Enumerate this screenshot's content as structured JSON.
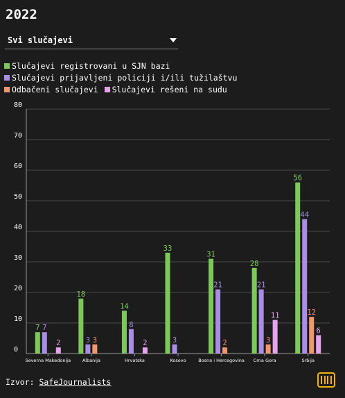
{
  "title": "2022",
  "filter": {
    "selected": "Svi slučajevi"
  },
  "legend": [
    {
      "label": "Slučajevi registrovani u SJN bazi",
      "color": "#7cc95a"
    },
    {
      "label": "Slučajevi prijavljeni policiji i/ili tužilaštvu",
      "color": "#a98de6"
    },
    {
      "label": "Odbačeni slučajevi",
      "color": "#f2966c"
    },
    {
      "label": "Slučajevi rešeni na sudu",
      "color": "#e6a2ef"
    }
  ],
  "footer": {
    "prefix": "Izvor:",
    "link": "SafeJournalists"
  },
  "chart_data": {
    "type": "bar",
    "categories": [
      "Severna Makedonija",
      "Albanija",
      "Hrvatska",
      "Kosovo",
      "Bosna i Hercegovina",
      "Crna Gora",
      "Srbija"
    ],
    "series": [
      {
        "name": "Slučajevi registrovani u SJN bazi",
        "color": "#7cc95a",
        "values": [
          7,
          18,
          14,
          33,
          31,
          28,
          56
        ]
      },
      {
        "name": "Slučajevi prijavljeni policiji i/ili tužilaštvu",
        "color": "#a98de6",
        "values": [
          7,
          3,
          8,
          3,
          21,
          21,
          44
        ]
      },
      {
        "name": "Odbačeni slučajevi",
        "color": "#f2966c",
        "values": [
          null,
          3,
          null,
          null,
          2,
          3,
          12
        ]
      },
      {
        "name": "Slučajevi rešeni na sudu",
        "color": "#e6a2ef",
        "values": [
          2,
          null,
          2,
          null,
          null,
          11,
          6
        ]
      }
    ],
    "ylim": [
      0,
      80
    ],
    "yticks": [
      0,
      10,
      20,
      30,
      40,
      50,
      60,
      70,
      80
    ],
    "grid": true,
    "legend_position": "top"
  }
}
